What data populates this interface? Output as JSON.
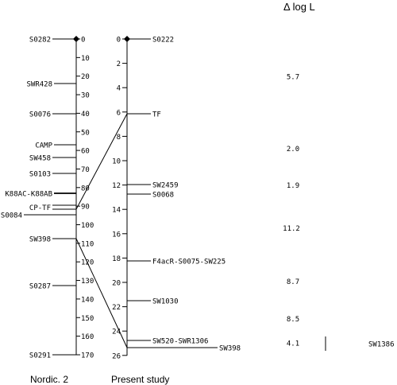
{
  "header": {
    "delta_label": "Δ log L"
  },
  "left_map": {
    "caption": "Nordic. 2",
    "ticks": [
      "0",
      "10",
      "20",
      "30",
      "40",
      "50",
      "60",
      "70",
      "80",
      "90",
      "100",
      "110",
      "120",
      "130",
      "140",
      "150",
      "160",
      "170"
    ],
    "markers": [
      {
        "label": "S0282",
        "pos": 0
      },
      {
        "label": "SWR428",
        "pos": 24
      },
      {
        "label": "S0076",
        "pos": 40
      },
      {
        "label": "CAMP",
        "pos": 57
      },
      {
        "label": "SW458",
        "pos": 64
      },
      {
        "label": "S0103",
        "pos": 73
      },
      {
        "label": "K88AC-K88AB",
        "pos": 85
      },
      {
        "label": "CP-TF",
        "pos": 90
      },
      {
        "label": "S0084",
        "pos": 95
      },
      {
        "label": "SW398",
        "pos": 107
      },
      {
        "label": "S0287",
        "pos": 134
      },
      {
        "label": "S0291",
        "pos": 170
      }
    ]
  },
  "right_map": {
    "caption": "Present study",
    "ticks": [
      "0",
      "2",
      "4",
      "6",
      "8",
      "10",
      "12",
      "14",
      "16",
      "18",
      "20",
      "22",
      "24",
      "26"
    ],
    "markers": [
      {
        "label": "S0222",
        "pos": 0
      },
      {
        "label": "TF",
        "pos": 6.3
      },
      {
        "label": "SW2459",
        "pos": 12.1
      },
      {
        "label": "S0068",
        "pos": 12.9
      },
      {
        "label": "F4acR-S0075-SW225",
        "pos": 18.3
      },
      {
        "label": "SW1030",
        "pos": 21.4
      },
      {
        "label": "SW520-SWR1306",
        "pos": 24.7
      },
      {
        "label": "SW398",
        "pos": 25.5
      }
    ]
  },
  "delta_log_l": [
    "5.7",
    "2.0",
    "1.9",
    "11.2",
    "8.7",
    "8.5",
    "4.1"
  ],
  "side_marker": {
    "label": "SW1386"
  }
}
